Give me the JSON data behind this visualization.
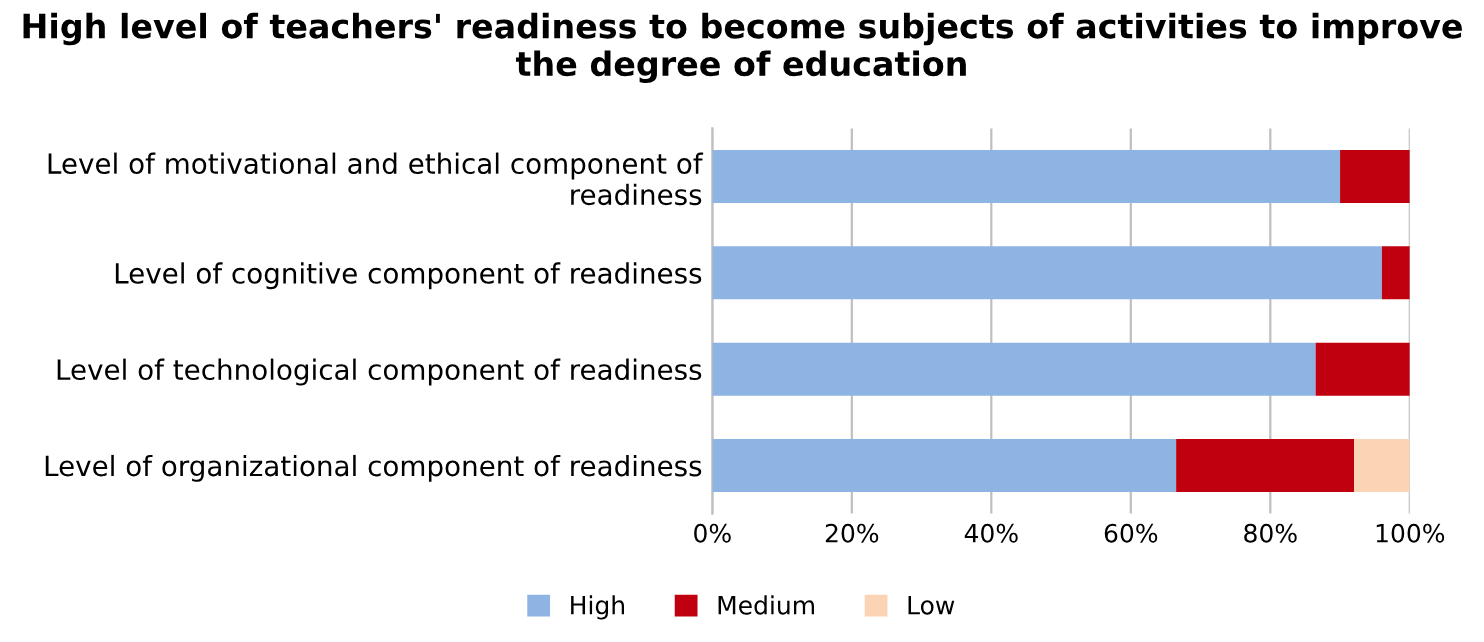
{
  "chart_data": {
    "type": "bar",
    "orientation": "horizontal",
    "stacked": true,
    "title": "High level of teachers' readiness to become subjects of activities to improve the degree of education",
    "categories": [
      "Level of motivational and ethical component of readiness",
      "Level of cognitive component of readiness",
      "Level of technological component of readiness",
      "Level of organizational component of readiness"
    ],
    "series": [
      {
        "name": "High",
        "color": "#8eb4e3",
        "values": [
          90,
          96,
          86.5,
          66.5
        ]
      },
      {
        "name": "Medium",
        "color": "#c0000f",
        "values": [
          10,
          4,
          13.5,
          25.5
        ]
      },
      {
        "name": "Low",
        "color": "#fad4b4",
        "values": [
          0,
          0,
          0,
          8
        ]
      }
    ],
    "xlim": [
      0,
      100
    ],
    "xticks": [
      {
        "value": 0,
        "label": "0%"
      },
      {
        "value": 20,
        "label": "20%"
      },
      {
        "value": 40,
        "label": "40%"
      },
      {
        "value": 60,
        "label": "60%"
      },
      {
        "value": 80,
        "label": "80%"
      },
      {
        "value": 100,
        "label": "100%"
      }
    ],
    "grid": "x",
    "legend": "bottom"
  }
}
